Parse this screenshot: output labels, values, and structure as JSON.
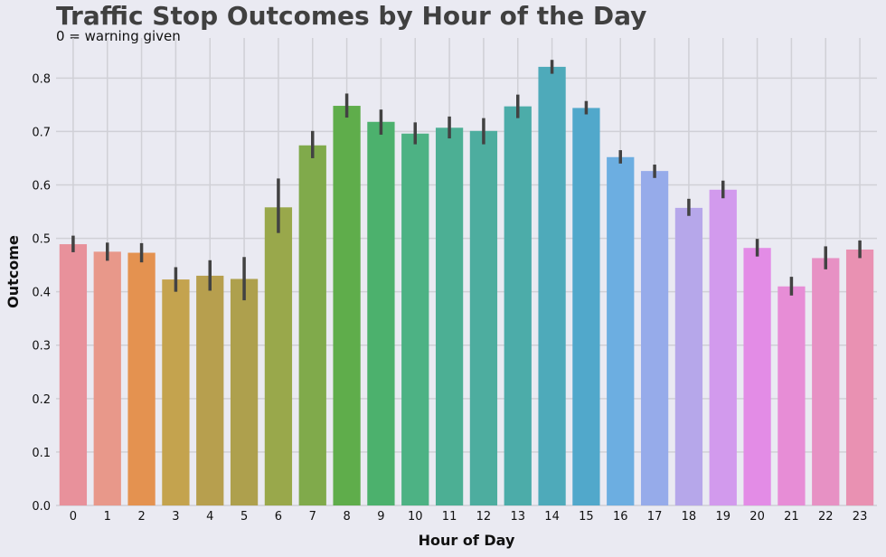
{
  "chart_data": {
    "type": "bar",
    "title": "Traffic Stop Outcomes by Hour of the Day",
    "subtitle": "0 = warning given",
    "xlabel": "Hour of Day",
    "ylabel": "Outcome",
    "ylim": [
      0,
      0.875
    ],
    "yticks": [
      "0.0",
      "0.1",
      "0.2",
      "0.3",
      "0.4",
      "0.5",
      "0.6",
      "0.7",
      "0.8"
    ],
    "categories": [
      "0",
      "1",
      "2",
      "3",
      "4",
      "5",
      "6",
      "7",
      "8",
      "9",
      "10",
      "11",
      "12",
      "13",
      "14",
      "15",
      "16",
      "17",
      "18",
      "19",
      "20",
      "21",
      "22",
      "23"
    ],
    "values": [
      0.489,
      0.475,
      0.473,
      0.423,
      0.43,
      0.424,
      0.558,
      0.674,
      0.748,
      0.718,
      0.696,
      0.707,
      0.701,
      0.747,
      0.821,
      0.744,
      0.652,
      0.626,
      0.557,
      0.591,
      0.482,
      0.41,
      0.463,
      0.479
    ],
    "error_low": [
      0.474,
      0.458,
      0.455,
      0.4,
      0.402,
      0.384,
      0.51,
      0.65,
      0.726,
      0.694,
      0.676,
      0.687,
      0.676,
      0.725,
      0.808,
      0.732,
      0.64,
      0.613,
      0.542,
      0.575,
      0.466,
      0.393,
      0.442,
      0.463
    ],
    "error_high": [
      0.505,
      0.492,
      0.491,
      0.446,
      0.459,
      0.465,
      0.612,
      0.701,
      0.771,
      0.741,
      0.717,
      0.728,
      0.725,
      0.769,
      0.834,
      0.757,
      0.665,
      0.638,
      0.574,
      0.608,
      0.499,
      0.428,
      0.485,
      0.496
    ],
    "colors": [
      "#e8919b",
      "#e8988a",
      "#e49250",
      "#c4a34e",
      "#b79f4e",
      "#aea04d",
      "#99a84b",
      "#80aa4b",
      "#5fad4b",
      "#4cb16d",
      "#4db284",
      "#4caf94",
      "#4dad9f",
      "#4caca9",
      "#4eaaba",
      "#51a8cb",
      "#6caee1",
      "#96abea",
      "#b6a7ea",
      "#d29aed",
      "#e38ce6",
      "#e78dd6",
      "#e791c4",
      "#e991b2"
    ],
    "errorbar_color": "#424242",
    "grid": true,
    "background": "#eaeaf2",
    "grid_color": "#d0d0d6"
  }
}
